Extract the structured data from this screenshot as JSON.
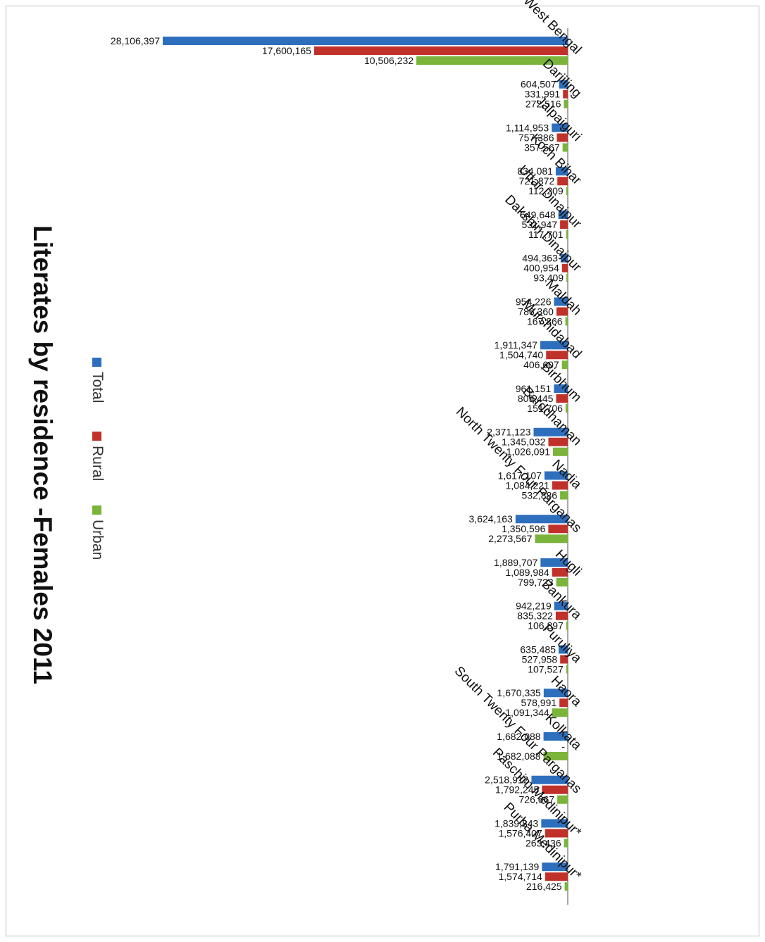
{
  "chart_data": {
    "type": "bar",
    "title": "Literates by residence -Females 2011",
    "legend_position": "top-left",
    "categories": [
      "West Bengal",
      "Darjiling",
      "Jalpaiguri",
      "Koch Bihar",
      "Uttar Dinajpur",
      "Dakshin Dinajpur",
      "Maldah",
      "Murshidabad",
      "Birbhum",
      "Barddhaman",
      "Nadia",
      "North Twenty Four Parganas",
      "Hugli",
      "Bankura",
      "Puruliya",
      "Haora",
      "Kolkata",
      "South Twenty Four Parganas",
      "Paschim Medinipur*",
      "Purba Medinipur*"
    ],
    "series": [
      {
        "name": "Total",
        "color": "#2e6fbd",
        "values": [
          28106397,
          604507,
          1114953,
          834081,
          649648,
          494363,
          954226,
          1911347,
          961151,
          2371123,
          1617107,
          3624163,
          1889707,
          942219,
          635485,
          1670335,
          1682088,
          2518912,
          1839843,
          1791139
        ],
        "labels": [
          "28,106,397",
          "604,507",
          "1,114,953",
          "834,081",
          "649,648",
          "494,363",
          "954,226",
          "1,911,347",
          "961,151",
          "2,371,123",
          "1,617,107",
          "3,624,163",
          "1,889,707",
          "942,219",
          "635,485",
          "1,670,335",
          "1,682,088",
          "2,518,912",
          "1,839,843",
          "1,791,139"
        ]
      },
      {
        "name": "Rural",
        "color": "#c0312a",
        "values": [
          17600165,
          331991,
          757386,
          721872,
          531947,
          400954,
          786360,
          1504740,
          809445,
          1345032,
          1084221,
          1350596,
          1089984,
          835322,
          527958,
          578991,
          0,
          1792245,
          1576407,
          1574714
        ],
        "labels": [
          "17,600,165",
          "331,991",
          "757,386",
          "721,872",
          "531,947",
          "400,954",
          "786,360",
          "1,504,740",
          "809,445",
          "1,345,032",
          "1,084,221",
          "1,350,596",
          "1,089,984",
          "835,322",
          "527,958",
          "578,991",
          "-",
          "1,792,245",
          "1,576,407",
          "1,574,714"
        ]
      },
      {
        "name": "Urban",
        "color": "#7ab43a",
        "values": [
          10506232,
          272516,
          357567,
          112209,
          117701,
          93409,
          167866,
          406607,
          151706,
          1026091,
          532886,
          2273567,
          799723,
          106897,
          107527,
          1091344,
          1682088,
          726667,
          263436,
          216425
        ],
        "labels": [
          "10,506,232",
          "272,516",
          "357,567",
          "112,209",
          "117,701",
          "93,409",
          "167,866",
          "406,607",
          "151,706",
          "1,026,091",
          "532,886",
          "2,273,567",
          "799,723",
          "106,897",
          "107,527",
          "1,091,344",
          "1,682,088",
          "726,667",
          "263,436",
          "216,425"
        ]
      }
    ],
    "ylim": [
      0,
      28106397
    ],
    "grid": false
  }
}
